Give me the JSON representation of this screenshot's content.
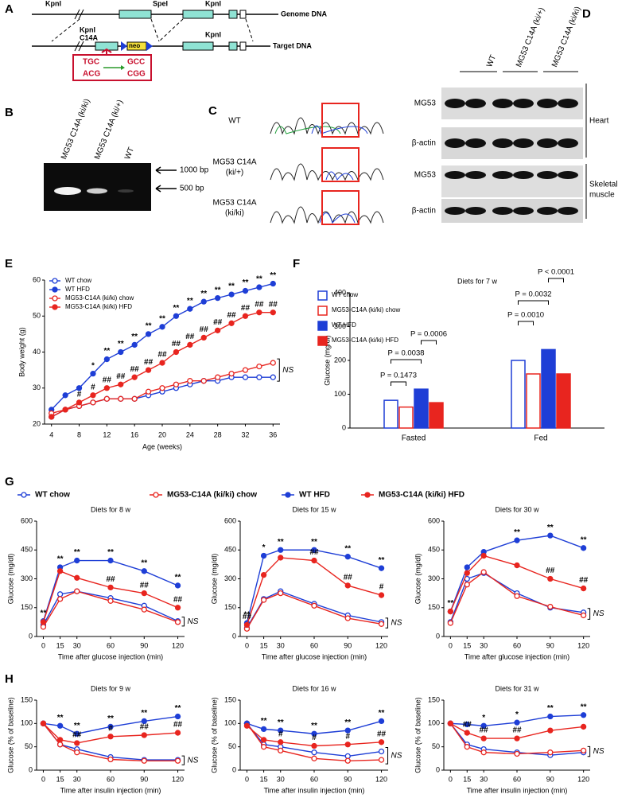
{
  "figure": {
    "panel_labels": [
      "A",
      "B",
      "C",
      "D",
      "E",
      "F",
      "G",
      "H"
    ],
    "A": {
      "genome_sites": [
        "KpnI",
        "SpeI",
        "KpnI"
      ],
      "genome_label": "Genome DNA",
      "target_sites": [
        "KpnI",
        "C14A",
        "KpnI"
      ],
      "neo": "neo",
      "target_label": "Target DNA",
      "codon_wt": [
        "TGC",
        "ACG"
      ],
      "codon_mut": [
        "GCC",
        "CGG"
      ]
    },
    "B": {
      "lanes": [
        "MG53 C14A (ki/ki)",
        "MG53 C14A (ki/+)",
        "WT"
      ],
      "markers": [
        "1000 bp",
        "500 bp"
      ]
    },
    "C": {
      "rows": [
        [
          "WT"
        ],
        [
          "MG53 C14A",
          "(ki/+)"
        ],
        [
          "MG53 C14A",
          "(ki/ki)"
        ]
      ]
    },
    "D": {
      "groups": [
        "WT",
        "MG53 C14A (ki/+)",
        "MG53 C14A (ki/ki)"
      ],
      "bands": [
        "MG53",
        "β-actin",
        "MG53",
        "β-actin"
      ],
      "tissues": [
        [
          "Heart"
        ],
        [
          "Skeletal",
          "muscle"
        ]
      ]
    }
  },
  "chart_data": [
    {
      "type": "line",
      "ylabel": "Body weight (g)",
      "xlabel": "Age (weeks)",
      "legend": "upper left",
      "ns_label": "NS",
      "x": [
        4,
        6,
        8,
        10,
        12,
        14,
        16,
        18,
        20,
        22,
        24,
        26,
        28,
        30,
        32,
        34,
        36
      ],
      "xlim": [
        3,
        37
      ],
      "xticks": [
        4,
        8,
        12,
        16,
        20,
        24,
        28,
        32,
        36
      ],
      "ylim": [
        20,
        60
      ],
      "yticks": [
        20,
        30,
        40,
        50,
        60
      ],
      "series": [
        {
          "name": "WT chow",
          "color": "#1e3ed6",
          "marker_fill": false,
          "values": [
            22,
            24,
            25,
            26,
            27,
            27,
            27,
            28,
            29,
            30,
            31,
            32,
            32,
            33,
            33,
            33,
            33
          ]
        },
        {
          "name": "WT HFD",
          "color": "#1e3ed6",
          "marker_fill": true,
          "values": [
            24,
            28,
            30,
            34,
            38,
            40,
            42,
            45,
            47,
            50,
            52,
            54,
            55,
            56,
            57,
            58,
            59
          ],
          "annotations": [
            null,
            null,
            null,
            "*",
            "**",
            "**",
            "**",
            "**",
            "**",
            "**",
            "**",
            "**",
            "**",
            "**",
            "**",
            "**",
            "**"
          ]
        },
        {
          "name": "MG53-C14A (ki/ki) chow",
          "color": "#e8251f",
          "marker_fill": false,
          "values": [
            23,
            24,
            25,
            26,
            27,
            27,
            27,
            29,
            30,
            31,
            32,
            32,
            33,
            34,
            35,
            36,
            37
          ]
        },
        {
          "name": "MG53-C14A (ki/ki) HFD",
          "color": "#e8251f",
          "marker_fill": true,
          "values": [
            22,
            24,
            26,
            28,
            30,
            31,
            33,
            35,
            37,
            40,
            42,
            44,
            46,
            48,
            50,
            51,
            51
          ],
          "annotations": [
            null,
            null,
            "#",
            "#",
            "##",
            "##",
            "##",
            "##",
            "##",
            "##",
            "##",
            "##",
            "##",
            "##",
            "##",
            "##",
            "##"
          ]
        }
      ]
    },
    {
      "type": "bar",
      "title": "Diets for 7 w",
      "ylabel": "Glucose (mg/dl)",
      "legend": "upper left",
      "categories": [
        "Fasted",
        "Fed"
      ],
      "ylim": [
        0,
        400
      ],
      "yticks": [
        0,
        100,
        200,
        300,
        400
      ],
      "series": [
        {
          "name": "WT chow",
          "color": "#1e3ed6",
          "filled": false,
          "values": [
            82,
            200
          ]
        },
        {
          "name": "MG53-C14A (ki/ki) chow",
          "color": "#e8251f",
          "filled": false,
          "values": [
            62,
            160
          ]
        },
        {
          "name": "WT HFD",
          "color": "#1e3ed6",
          "filled": true,
          "values": [
            115,
            232
          ]
        },
        {
          "name": "MG53-C14A (ki/ki) HFD",
          "color": "#e8251f",
          "filled": true,
          "values": [
            75,
            160
          ]
        }
      ],
      "comparisons": [
        "P = 0.1473",
        "P = 0.0038",
        "P = 0.0006",
        "P = 0.0010",
        "P = 0.0032",
        "P < 0.0001"
      ]
    },
    {
      "type": "line",
      "title": "Diets for 8 w",
      "xlabel": "Time after glucose injection (min)",
      "ylabel": "Glucose (mg/dl)",
      "ns_label": "NS",
      "x": [
        0,
        15,
        30,
        60,
        90,
        120
      ],
      "xlim": [
        -6,
        126
      ],
      "xticks": [
        0,
        15,
        30,
        60,
        90,
        120
      ],
      "ylim": [
        0,
        600
      ],
      "yticks": [
        0,
        150,
        300,
        450,
        600
      ],
      "series": [
        {
          "name": "WT chow",
          "color": "#1e3ed6",
          "marker_fill": false,
          "values": [
            60,
            220,
            235,
            200,
            160,
            80
          ]
        },
        {
          "name": "MG53-C14A (ki/ki) chow",
          "color": "#e8251f",
          "marker_fill": false,
          "values": [
            50,
            195,
            235,
            185,
            140,
            75
          ]
        },
        {
          "name": "WT HFD",
          "color": "#1e3ed6",
          "marker_fill": true,
          "values": [
            80,
            360,
            395,
            395,
            340,
            265
          ],
          "annotations": [
            "**",
            "**",
            "**",
            "**",
            "**",
            "**"
          ]
        },
        {
          "name": "MG53-C14A (ki/ki) HFD",
          "color": "#e8251f",
          "marker_fill": true,
          "values": [
            75,
            340,
            305,
            255,
            225,
            150
          ],
          "annotations": [
            null,
            null,
            null,
            "##",
            "##",
            "##"
          ]
        }
      ]
    },
    {
      "type": "line",
      "title": "Diets for 15 w",
      "xlabel": "Time after glucose injection (min)",
      "ylabel": "Glucose (mg/dl)",
      "ns_label": "NS",
      "x": [
        0,
        15,
        30,
        60,
        90,
        120
      ],
      "xlim": [
        -6,
        126
      ],
      "xticks": [
        0,
        15,
        30,
        60,
        90,
        120
      ],
      "ylim": [
        0,
        600
      ],
      "yticks": [
        0,
        150,
        300,
        450,
        600
      ],
      "series": [
        {
          "color": "#1e3ed6",
          "marker_fill": false,
          "values": [
            45,
            195,
            235,
            170,
            110,
            75
          ]
        },
        {
          "color": "#e8251f",
          "marker_fill": false,
          "values": [
            40,
            190,
            225,
            160,
            95,
            65
          ]
        },
        {
          "color": "#1e3ed6",
          "marker_fill": true,
          "values": [
            70,
            420,
            450,
            450,
            415,
            355
          ],
          "annotations": [
            "**",
            "*",
            "**",
            "**",
            "**",
            "**"
          ]
        },
        {
          "color": "#e8251f",
          "marker_fill": true,
          "values": [
            60,
            320,
            410,
            395,
            265,
            215
          ],
          "annotations": [
            "##",
            null,
            null,
            "##",
            "##",
            "#"
          ]
        }
      ]
    },
    {
      "type": "line",
      "title": "Diets for 30 w",
      "xlabel": "Time after glucose injection (min)",
      "ylabel": "Glucose (mg/dl)",
      "ns_label": "NS",
      "x": [
        0,
        15,
        30,
        60,
        90,
        120
      ],
      "xlim": [
        -6,
        126
      ],
      "xticks": [
        0,
        15,
        30,
        60,
        90,
        120
      ],
      "ylim": [
        0,
        600
      ],
      "yticks": [
        0,
        150,
        300,
        450,
        600
      ],
      "series": [
        {
          "color": "#1e3ed6",
          "marker_fill": false,
          "values": [
            75,
            300,
            330,
            225,
            150,
            125
          ]
        },
        {
          "color": "#e8251f",
          "marker_fill": false,
          "values": [
            70,
            270,
            335,
            210,
            155,
            110
          ]
        },
        {
          "color": "#1e3ed6",
          "marker_fill": true,
          "values": [
            130,
            360,
            440,
            500,
            525,
            460
          ],
          "annotations": [
            "**",
            null,
            null,
            "**",
            "**",
            "**"
          ]
        },
        {
          "color": "#e8251f",
          "marker_fill": true,
          "values": [
            130,
            330,
            420,
            370,
            300,
            250
          ],
          "annotations": [
            null,
            null,
            null,
            null,
            "##",
            "##"
          ]
        }
      ]
    },
    {
      "type": "line",
      "title": "Diets for 9 w",
      "xlabel": "Time after insulin injection (min)",
      "ylabel": "Glucose (% of baseline)",
      "ns_label": "NS",
      "x": [
        0,
        15,
        30,
        60,
        90,
        120
      ],
      "xlim": [
        -6,
        126
      ],
      "xticks": [
        0,
        15,
        30,
        60,
        90,
        120
      ],
      "ylim": [
        0,
        150
      ],
      "yticks": [
        0,
        50,
        100,
        150
      ],
      "series": [
        {
          "color": "#1e3ed6",
          "marker_fill": false,
          "values": [
            100,
            55,
            45,
            28,
            22,
            22
          ]
        },
        {
          "color": "#e8251f",
          "marker_fill": false,
          "values": [
            100,
            55,
            38,
            23,
            20,
            20
          ]
        },
        {
          "color": "#1e3ed6",
          "marker_fill": true,
          "values": [
            100,
            95,
            78,
            93,
            105,
            115
          ],
          "annotations": [
            null,
            "**",
            "**",
            "**",
            "**",
            "**"
          ]
        },
        {
          "color": "#e8251f",
          "marker_fill": true,
          "values": [
            100,
            65,
            58,
            72,
            75,
            80
          ],
          "annotations": [
            null,
            null,
            "##",
            "#",
            "##",
            "##"
          ]
        }
      ]
    },
    {
      "type": "line",
      "title": "Diets for 16 w",
      "xlabel": "Time after insulin injection (min)",
      "ylabel": "Glucose (% of baseline)",
      "ns_label": "NS",
      "x": [
        0,
        15,
        30,
        60,
        90,
        120
      ],
      "xlim": [
        -6,
        126
      ],
      "xticks": [
        0,
        15,
        30,
        60,
        90,
        120
      ],
      "ylim": [
        0,
        150
      ],
      "yticks": [
        0,
        50,
        100,
        150
      ],
      "series": [
        {
          "color": "#1e3ed6",
          "marker_fill": false,
          "values": [
            100,
            55,
            50,
            38,
            30,
            40
          ]
        },
        {
          "color": "#e8251f",
          "marker_fill": false,
          "values": [
            100,
            50,
            42,
            25,
            20,
            22
          ]
        },
        {
          "color": "#1e3ed6",
          "marker_fill": true,
          "values": [
            100,
            88,
            85,
            78,
            85,
            105
          ],
          "annotations": [
            null,
            "**",
            "**",
            "**",
            "**",
            "**"
          ]
        },
        {
          "color": "#e8251f",
          "marker_fill": true,
          "values": [
            95,
            65,
            60,
            52,
            55,
            60
          ],
          "annotations": [
            null,
            null,
            "#",
            "#",
            "#",
            "##"
          ]
        }
      ]
    },
    {
      "type": "line",
      "title": "Diets for 31 w",
      "xlabel": "Time after insulin injection (min)",
      "ylabel": "Glucose (% of baseline)",
      "ns_label": "NS",
      "x": [
        0,
        15,
        30,
        60,
        90,
        120
      ],
      "xlim": [
        -6,
        126
      ],
      "xticks": [
        0,
        15,
        30,
        60,
        90,
        120
      ],
      "ylim": [
        0,
        150
      ],
      "yticks": [
        0,
        50,
        100,
        150
      ],
      "series": [
        {
          "color": "#1e3ed6",
          "marker_fill": false,
          "values": [
            100,
            55,
            45,
            38,
            32,
            38
          ]
        },
        {
          "color": "#e8251f",
          "marker_fill": false,
          "values": [
            100,
            50,
            38,
            35,
            38,
            42
          ]
        },
        {
          "color": "#1e3ed6",
          "marker_fill": true,
          "values": [
            100,
            98,
            95,
            102,
            115,
            118
          ],
          "annotations": [
            null,
            null,
            "*",
            "*",
            "**",
            "**"
          ]
        },
        {
          "color": "#e8251f",
          "marker_fill": true,
          "values": [
            100,
            80,
            68,
            68,
            85,
            93
          ],
          "annotations": [
            null,
            "##",
            "##",
            "##",
            null,
            null
          ]
        }
      ]
    }
  ]
}
